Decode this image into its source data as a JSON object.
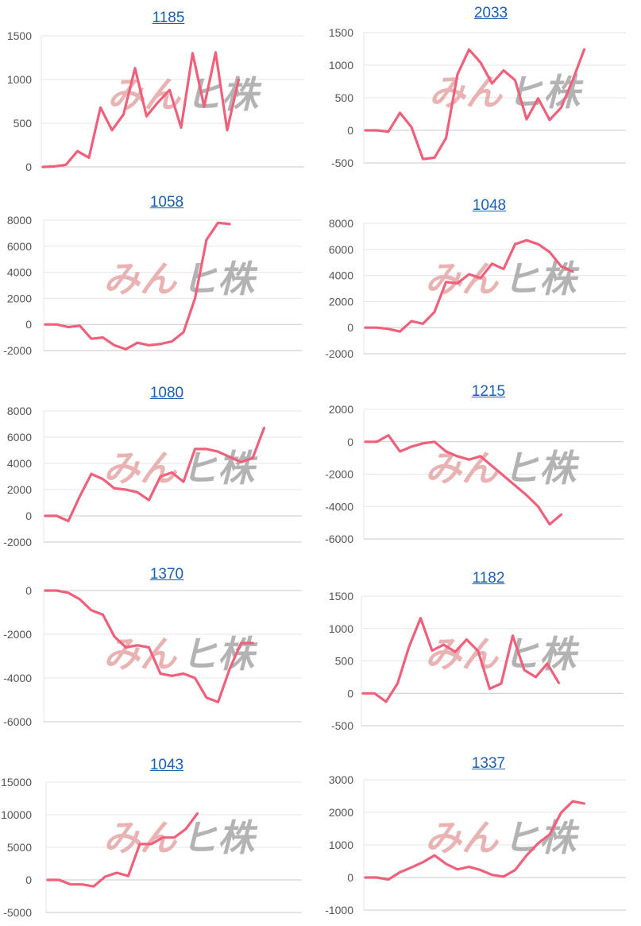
{
  "theme": {
    "line_color": "#f0607a",
    "grid_color": "#e6e6e6",
    "axis_color": "#c8c8c8",
    "title_color": "#1a5fb4"
  },
  "watermark": {
    "red_part": "みん",
    "gray_part": "ヒ株"
  },
  "charts": [
    {
      "title": "1185",
      "chart_data": {
        "type": "line",
        "title": "1185",
        "ylim": [
          0,
          1500
        ],
        "yticks": [
          0,
          500,
          1000,
          1500
        ],
        "grid": true,
        "values": [
          0,
          5,
          25,
          180,
          105,
          680,
          420,
          600,
          1130,
          580,
          740,
          880,
          450,
          1300,
          690,
          1310,
          420,
          1000
        ]
      }
    },
    {
      "title": "2033",
      "chart_data": {
        "type": "line",
        "title": "2033",
        "ylim": [
          -500,
          1500
        ],
        "yticks": [
          -500,
          0,
          500,
          1000,
          1500
        ],
        "grid": true,
        "values": [
          0,
          0,
          -20,
          270,
          50,
          -440,
          -420,
          -120,
          860,
          1240,
          1040,
          720,
          920,
          770,
          170,
          490,
          160,
          350,
          770,
          1240
        ]
      }
    },
    {
      "title": "1058",
      "chart_data": {
        "type": "line",
        "title": "1058",
        "ylim": [
          -2000,
          8000
        ],
        "yticks": [
          -2000,
          0,
          2000,
          4000,
          6000,
          8000
        ],
        "grid": true,
        "values": [
          0,
          0,
          -200,
          -100,
          -1100,
          -1000,
          -1600,
          -1900,
          -1400,
          -1600,
          -1500,
          -1300,
          -600,
          2000,
          6500,
          7800,
          7700
        ]
      }
    },
    {
      "title": "1048",
      "chart_data": {
        "type": "line",
        "title": "1048",
        "ylim": [
          -2000,
          8000
        ],
        "yticks": [
          -2000,
          0,
          2000,
          4000,
          6000,
          8000
        ],
        "grid": true,
        "values": [
          0,
          0,
          -100,
          -300,
          500,
          300,
          1200,
          3500,
          3400,
          4100,
          3800,
          4900,
          4500,
          6400,
          6700,
          6400,
          5800,
          4700,
          4300
        ]
      }
    },
    {
      "title": "1080",
      "chart_data": {
        "type": "line",
        "title": "1080",
        "ylim": [
          -2000,
          8000
        ],
        "yticks": [
          -2000,
          0,
          2000,
          4000,
          6000,
          8000
        ],
        "grid": true,
        "values": [
          0,
          0,
          -400,
          1500,
          3200,
          2800,
          2100,
          2000,
          1800,
          1200,
          3000,
          3300,
          2600,
          5100,
          5100,
          4900,
          4500,
          4100,
          4400,
          6700
        ]
      }
    },
    {
      "title": "1215",
      "chart_data": {
        "type": "line",
        "title": "1215",
        "ylim": [
          -6000,
          2000
        ],
        "yticks": [
          -6000,
          -4000,
          -2000,
          0,
          2000
        ],
        "grid": true,
        "values": [
          0,
          0,
          400,
          -600,
          -300,
          -100,
          0,
          -600,
          -900,
          -1100,
          -900,
          -1500,
          -2100,
          -2700,
          -3300,
          -4000,
          -5100,
          -4500
        ]
      }
    },
    {
      "title": "1370",
      "chart_data": {
        "type": "line",
        "title": "1370",
        "ylim": [
          -6000,
          0
        ],
        "yticks": [
          -6000,
          -4000,
          -2000,
          0
        ],
        "grid": true,
        "values": [
          0,
          0,
          -100,
          -400,
          -900,
          -1100,
          -2100,
          -2600,
          -2500,
          -2600,
          -3800,
          -3900,
          -3800,
          -4000,
          -4900,
          -5100,
          -3600,
          -2400,
          -2400
        ]
      }
    },
    {
      "title": "1182",
      "chart_data": {
        "type": "line",
        "title": "1182",
        "ylim": [
          -500,
          1500
        ],
        "yticks": [
          -500,
          0,
          500,
          1000,
          1500
        ],
        "grid": true,
        "values": [
          0,
          0,
          -130,
          150,
          720,
          1160,
          660,
          750,
          640,
          830,
          650,
          70,
          150,
          890,
          360,
          250,
          460,
          160
        ]
      }
    },
    {
      "title": "1043",
      "chart_data": {
        "type": "line",
        "title": "1043",
        "ylim": [
          -5000,
          15000
        ],
        "yticks": [
          -5000,
          0,
          5000,
          10000,
          15000
        ],
        "grid": true,
        "values": [
          0,
          0,
          -700,
          -700,
          -1000,
          500,
          1100,
          600,
          5500,
          5500,
          6500,
          6500,
          7800,
          10200
        ]
      }
    },
    {
      "title": "1337",
      "chart_data": {
        "type": "line",
        "title": "1337",
        "ylim": [
          -1000,
          3000
        ],
        "yticks": [
          -1000,
          0,
          1000,
          2000,
          3000
        ],
        "grid": true,
        "values": [
          0,
          0,
          -60,
          160,
          310,
          470,
          680,
          420,
          250,
          330,
          230,
          80,
          30,
          230,
          680,
          1050,
          1320,
          1990,
          2340,
          2270
        ]
      }
    }
  ]
}
